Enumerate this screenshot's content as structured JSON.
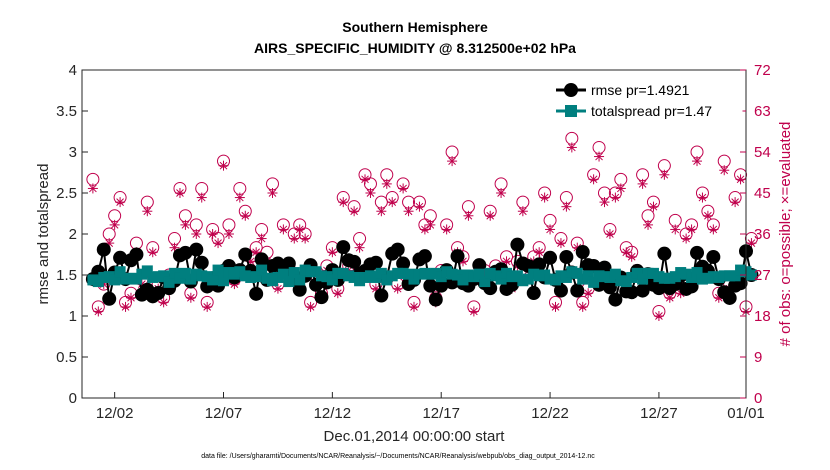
{
  "chart_data": {
    "type": "line",
    "title": "Southern Hemisphere",
    "subtitle": "AIRS_SPECIFIC_HUMIDITY @ 8.312500e+02 hPa",
    "xlabel": "Dec.01,2014 00:00:00 start",
    "ylabel": "rmse and totalspread",
    "ylabel_right": "# of obs: o=possible; ×=evaluated",
    "footnote": "data file: /Users/gharamti/Documents/NCAR/Reanalysis/~/Documents/NCAR/Reanalysis/webpub/obs_diag_output_2014-12.nc",
    "xlim": [
      0.5,
      31.0
    ],
    "ylim": [
      0,
      4
    ],
    "ylim_right": [
      0,
      72
    ],
    "x_ticks": [
      {
        "x": 2,
        "label": "12/02"
      },
      {
        "x": 7,
        "label": "12/07"
      },
      {
        "x": 12,
        "label": "12/12"
      },
      {
        "x": 17,
        "label": "12/17"
      },
      {
        "x": 22,
        "label": "12/22"
      },
      {
        "x": 27,
        "label": "12/27"
      },
      {
        "x": 32,
        "label": "01/01"
      }
    ],
    "y_ticks": [
      "0",
      "0.5",
      "1",
      "1.5",
      "2",
      "2.5",
      "3",
      "3.5",
      "4"
    ],
    "y_ticks_right": [
      "0",
      "9",
      "18",
      "27",
      "36",
      "45",
      "54",
      "63",
      "72"
    ],
    "grid": false,
    "legend_position": "top-right",
    "colors": {
      "rmse": "#000000",
      "totalspread": "#007f7f",
      "obs": "#c0004c"
    },
    "series": [
      {
        "name": "rmse pr=1.4921",
        "axis": "left",
        "values": [
          1.45,
          1.54,
          1.81,
          1.21,
          1.53,
          1.71,
          1.45,
          1.68,
          1.75,
          1.26,
          1.32,
          1.24,
          1.28,
          1.47,
          1.34,
          1.43,
          1.74,
          1.77,
          1.42,
          1.81,
          1.65,
          1.36,
          1.46,
          1.37,
          1.55,
          1.61,
          1.47,
          1.56,
          1.75,
          1.55,
          1.27,
          1.69,
          1.44,
          1.61,
          1.64,
          1.54,
          1.64,
          1.46,
          1.32,
          1.49,
          1.62,
          1.38,
          1.23,
          1.41,
          1.56,
          1.44,
          1.84,
          1.68,
          1.66,
          1.52,
          1.55,
          1.63,
          1.65,
          1.25,
          1.47,
          1.76,
          1.81,
          1.64,
          1.39,
          1.44,
          1.69,
          1.73,
          1.37,
          1.2,
          1.37,
          1.56,
          1.41,
          1.73,
          1.4,
          1.37,
          1.45,
          1.62,
          1.4,
          1.34,
          1.54,
          1.57,
          1.33,
          1.38,
          1.87,
          1.64,
          1.61,
          1.28,
          1.63,
          1.47,
          1.71,
          1.44,
          1.31,
          1.72,
          1.53,
          1.31,
          1.78,
          1.62,
          1.61,
          1.38,
          1.59,
          1.35,
          1.2,
          1.47,
          1.3,
          1.29,
          1.55,
          1.31,
          1.51,
          1.38,
          1.34,
          1.76,
          1.34,
          1.39,
          1.49,
          1.33,
          1.36,
          1.77,
          1.6,
          1.55,
          1.72,
          1.45,
          1.29,
          1.22,
          1.37,
          1.4,
          1.79,
          1.5
        ]
      },
      {
        "name": "totalspread pr=1.47",
        "axis": "left",
        "values": [
          1.44,
          1.42,
          1.47,
          1.48,
          1.44,
          1.54,
          1.45,
          1.46,
          1.45,
          1.51,
          1.55,
          1.47,
          1.48,
          1.49,
          1.41,
          1.52,
          1.46,
          1.52,
          1.45,
          1.51,
          1.49,
          1.48,
          1.44,
          1.56,
          1.43,
          1.53,
          1.51,
          1.54,
          1.49,
          1.47,
          1.48,
          1.56,
          1.46,
          1.43,
          1.47,
          1.51,
          1.42,
          1.53,
          1.44,
          1.56,
          1.54,
          1.54,
          1.49,
          1.48,
          1.44,
          1.52,
          1.52,
          1.49,
          1.47,
          1.43,
          1.47,
          1.49,
          1.47,
          1.52,
          1.44,
          1.49,
          1.52,
          1.52,
          1.51,
          1.45,
          1.51,
          1.52,
          1.51,
          1.52,
          1.48,
          1.54,
          1.51,
          1.5,
          1.44,
          1.5,
          1.48,
          1.51,
          1.42,
          1.52,
          1.49,
          1.45,
          1.52,
          1.48,
          1.49,
          1.43,
          1.45,
          1.51,
          1.49,
          1.5,
          1.45,
          1.44,
          1.49,
          1.47,
          1.54,
          1.52,
          1.45,
          1.49,
          1.41,
          1.49,
          1.48,
          1.47,
          1.51,
          1.43,
          1.42,
          1.47,
          1.52,
          1.45,
          1.52,
          1.52,
          1.48,
          1.46,
          1.46,
          1.48,
          1.53,
          1.51,
          1.47,
          1.53,
          1.45,
          1.46,
          1.48,
          1.47,
          1.49,
          1.49,
          1.49,
          1.56,
          1.54,
          1.5
        ]
      },
      {
        "name": "possible",
        "axis": "right",
        "values": [
          48,
          20,
          25,
          36,
          40,
          44,
          21,
          23,
          34,
          26,
          43,
          33,
          25,
          22,
          27,
          35,
          46,
          40,
          23,
          38,
          46,
          21,
          37,
          35,
          52,
          38,
          26,
          46,
          41,
          31,
          33,
          37,
          32,
          47,
          25,
          38,
          29,
          36,
          38,
          36,
          21,
          27,
          23,
          29,
          33,
          24,
          44,
          29,
          42,
          35,
          49,
          47,
          25,
          43,
          49,
          44,
          25,
          47,
          43,
          21,
          43,
          38,
          40,
          22,
          28,
          38,
          54,
          33,
          31,
          42,
          20,
          29,
          28,
          41,
          29,
          47,
          31,
          25,
          30,
          43,
          29,
          31,
          33,
          45,
          39,
          21,
          35,
          44,
          57,
          34,
          21,
          24,
          49,
          55,
          45,
          37,
          45,
          48,
          33,
          32,
          28,
          49,
          40,
          43,
          19,
          51,
          23,
          39,
          24,
          36,
          38,
          54,
          45,
          41,
          38,
          23,
          52,
          25,
          44,
          49,
          20,
          35
        ]
      },
      {
        "name": "evaluated",
        "axis": "right",
        "values": [
          46,
          19,
          25,
          34,
          38,
          43,
          20,
          22,
          32,
          25,
          41,
          32,
          24,
          21,
          26,
          33,
          45,
          38,
          22,
          36,
          44,
          20,
          36,
          34,
          51,
          36,
          25,
          44,
          40,
          30,
          32,
          35,
          30,
          45,
          24,
          37,
          28,
          35,
          37,
          35,
          20,
          26,
          22,
          28,
          32,
          23,
          43,
          28,
          41,
          33,
          48,
          45,
          24,
          41,
          47,
          43,
          24,
          46,
          41,
          20,
          42,
          37,
          38,
          21,
          27,
          37,
          52,
          32,
          30,
          40,
          19,
          28,
          27,
          40,
          28,
          45,
          30,
          24,
          29,
          41,
          28,
          30,
          32,
          44,
          37,
          20,
          34,
          42,
          55,
          33,
          20,
          23,
          48,
          53,
          43,
          36,
          44,
          46,
          32,
          31,
          27,
          47,
          38,
          42,
          18,
          49,
          22,
          37,
          23,
          35,
          37,
          52,
          44,
          40,
          37,
          22,
          50,
          24,
          43,
          48,
          19,
          34
        ]
      }
    ]
  }
}
